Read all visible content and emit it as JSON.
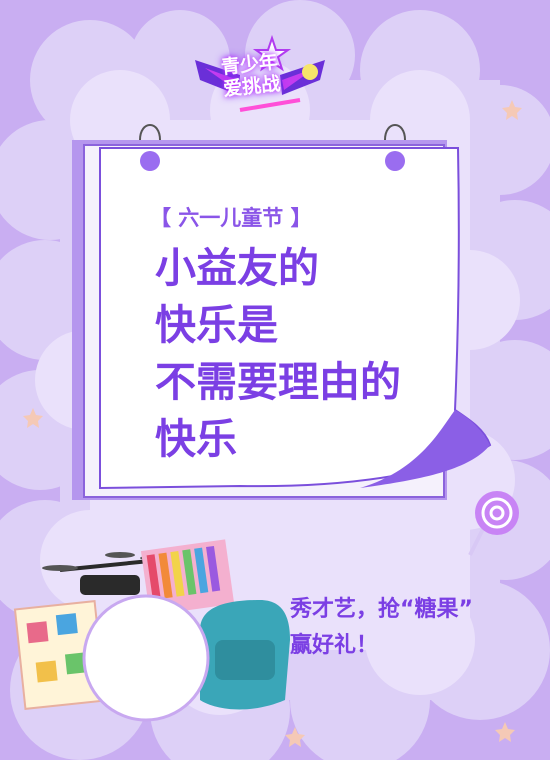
{
  "logo": {
    "line1": "青少年",
    "line2": "爱挑战"
  },
  "card": {
    "tag": "【 六一儿童节 】",
    "headline": [
      "小益友的",
      "快乐是",
      "不需要理由的",
      "快乐"
    ]
  },
  "promo": {
    "line1": "秀才艺，抢“糖果”",
    "line2": "赢好礼！"
  },
  "colors": {
    "background": "#c9aef2",
    "accent": "#7b3fe4",
    "paper": "#ffffff"
  }
}
